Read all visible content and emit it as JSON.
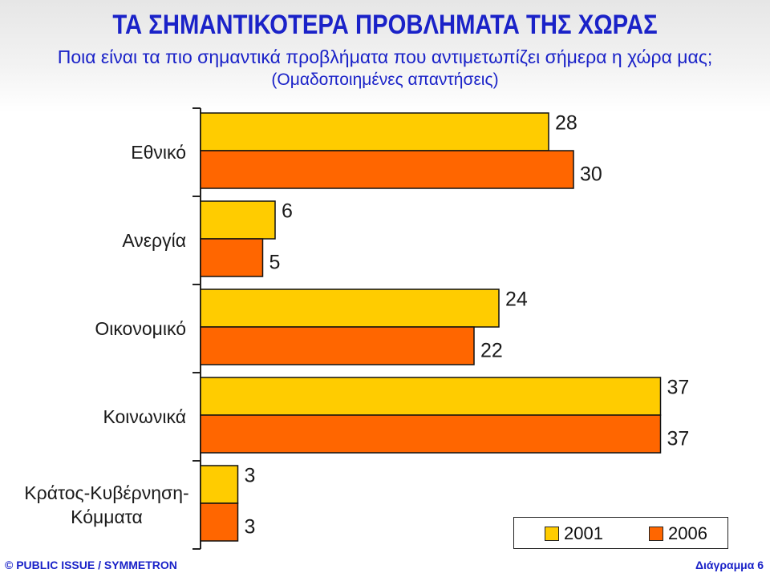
{
  "header": {
    "title": "ΤΑ ΣΗΜΑΝΤΙΚΟΤΕΡΑ ΠΡΟΒΛΗΜΑΤΑ ΤΗΣ ΧΩΡΑΣ",
    "subtitle": "Ποια είναι τα πιο σημαντικά προβλήματα που αντιμετωπίζει σήμερα η χώρα μας;",
    "subtitle2": "(Ομαδοποιημένες απαντήσεις)"
  },
  "chart_data": {
    "type": "bar",
    "orientation": "horizontal",
    "title": "ΤΑ ΣΗΜΑΝΤΙΚΟΤΕΡΑ ΠΡΟΒΛΗΜΑΤΑ ΤΗΣ ΧΩΡΑΣ",
    "categories": [
      "Εθνικό",
      "Ανεργία",
      "Οικονομικό",
      "Κοινωνικά",
      "Κράτος-Κυβέρνηση-Κόμματα"
    ],
    "category_lines": [
      [
        "Εθνικό"
      ],
      [
        "Ανεργία"
      ],
      [
        "Οικονομικό"
      ],
      [
        "Κοινωνικά"
      ],
      [
        "Κράτος-Κυβέρνηση-",
        "Κόμματα"
      ]
    ],
    "series": [
      {
        "name": "2001",
        "values": [
          28,
          6,
          24,
          37,
          3
        ],
        "color": "#ffcc00"
      },
      {
        "name": "2006",
        "values": [
          30,
          5,
          22,
          37,
          3
        ],
        "color": "#ff6600"
      }
    ],
    "xlim": [
      0,
      40
    ],
    "grid": false,
    "legend_position": "bottom-right"
  },
  "footer": {
    "left": "© PUBLIC ISSUE / SYMMETRON",
    "right": "Διάγραμμα 6"
  }
}
